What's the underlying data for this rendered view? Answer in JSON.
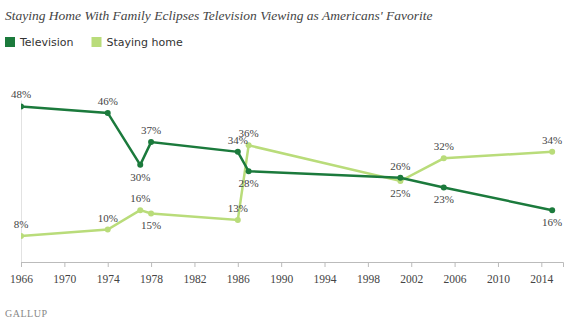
{
  "chart_data": {
    "type": "line",
    "title": "Staying Home With Family Eclipses Television Viewing as Americans' Favorite",
    "source": "GALLUP",
    "x": [
      1966,
      1974,
      1977,
      1978,
      1986,
      1987,
      2001,
      2005,
      2015
    ],
    "series": [
      {
        "name": "Television",
        "color": "#1b7a3c",
        "values": [
          48,
          46,
          30,
          37,
          34,
          28,
          26,
          23,
          16
        ],
        "value_labels": [
          "48%",
          "46%",
          "30%",
          "37%",
          "34%",
          "28%",
          "26%",
          "23%",
          "16%"
        ]
      },
      {
        "name": "Staying home",
        "color": "#b9dc7a",
        "values": [
          8,
          10,
          16,
          15,
          13,
          36,
          25,
          32,
          34
        ],
        "value_labels": [
          "8%",
          "10%",
          "16%",
          "15%",
          "13%",
          "36%",
          "25%",
          "32%",
          "34%"
        ]
      }
    ],
    "xlim": [
      1966,
      2016
    ],
    "xticks": [
      1966,
      1970,
      1974,
      1978,
      1982,
      1986,
      1990,
      1994,
      1998,
      2002,
      2006,
      2010,
      2014
    ],
    "ylim": [
      0,
      50
    ],
    "yticks": [],
    "tick_labels": "x",
    "grid": false,
    "data_labels": true,
    "legend": "top-left",
    "marker": "circle"
  }
}
